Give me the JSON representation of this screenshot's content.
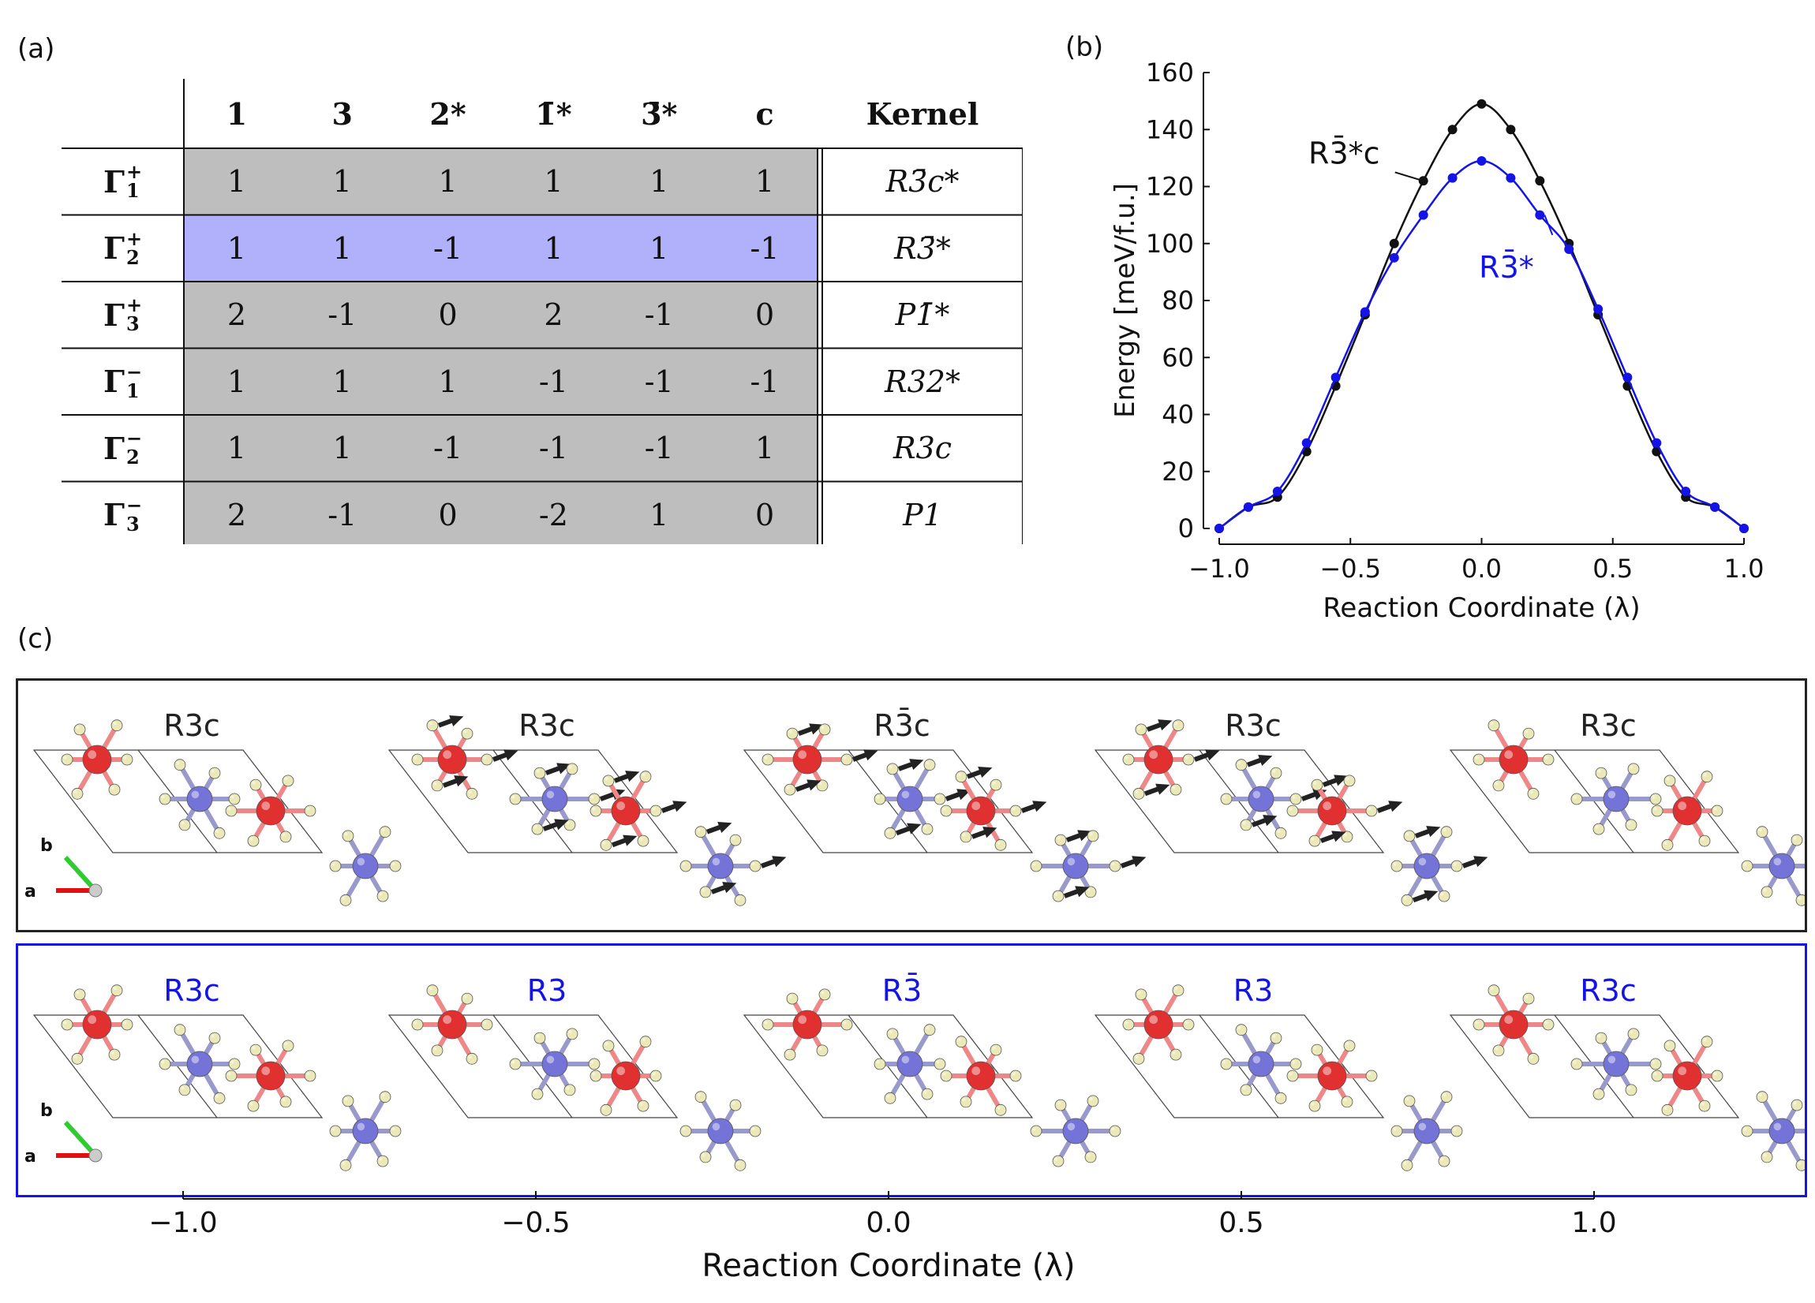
{
  "panel_labels": {
    "a": "(a)",
    "b": "(b)",
    "c": "(c)"
  },
  "table": {
    "headers": [
      "1",
      "3",
      "2*",
      "1̄*",
      "3̄*",
      "c",
      "Kernel"
    ],
    "rows": [
      {
        "irrep": "Γ",
        "sup": "+",
        "sub": "1",
        "values": [
          "1",
          "1",
          "1",
          "1",
          "1",
          "1"
        ],
        "kernel": "R3̄c*"
      },
      {
        "irrep": "Γ",
        "sup": "+",
        "sub": "2",
        "values": [
          "1",
          "1",
          "-1",
          "1",
          "1",
          "-1"
        ],
        "kernel": "R3̄*"
      },
      {
        "irrep": "Γ",
        "sup": "+",
        "sub": "3",
        "values": [
          "2",
          "-1",
          "0",
          "2",
          "-1",
          "0"
        ],
        "kernel": "P1̄*"
      },
      {
        "irrep": "Γ",
        "sup": "−",
        "sub": "1",
        "values": [
          "1",
          "1",
          "1",
          "-1",
          "-1",
          "-1"
        ],
        "kernel": "R32*"
      },
      {
        "irrep": "Γ",
        "sup": "−",
        "sub": "2",
        "values": [
          "1",
          "1",
          "-1",
          "-1",
          "-1",
          "1"
        ],
        "kernel": "R3c"
      },
      {
        "irrep": "Γ",
        "sup": "−",
        "sub": "3",
        "values": [
          "2",
          "-1",
          "0",
          "-2",
          "1",
          "0"
        ],
        "kernel": "P1"
      }
    ],
    "highlight_row": 1,
    "colors": {
      "gray": "#bebebe",
      "highlight": "#b0b0fb"
    }
  },
  "chart_data": {
    "type": "line",
    "xlabel": "Reaction Coordinate (λ)",
    "ylabel": "Energy [meV/f.u.]",
    "xlim": [
      -1.0,
      1.0
    ],
    "ylim": [
      0,
      160
    ],
    "xticks": [
      -1.0,
      -0.5,
      0.0,
      0.5,
      1.0
    ],
    "xtick_labels": [
      "−1.0",
      "−0.5",
      "0.0",
      "0.5",
      "1.0"
    ],
    "yticks": [
      0,
      20,
      40,
      60,
      80,
      100,
      120,
      140,
      160
    ],
    "series": [
      {
        "name": "R3̄*c",
        "color": "#111111",
        "x": [
          -1.0,
          -0.889,
          -0.778,
          -0.667,
          -0.556,
          -0.444,
          -0.333,
          -0.222,
          -0.111,
          0.0,
          0.111,
          0.222,
          0.333,
          0.444,
          0.556,
          0.667,
          0.778,
          0.889,
          1.0
        ],
        "y": [
          0,
          7.5,
          11,
          27,
          50,
          75,
          100,
          122,
          140,
          149,
          140,
          122,
          100,
          75,
          50,
          27,
          11,
          7.5,
          0
        ]
      },
      {
        "name": "R3̄*",
        "color": "#1414e6",
        "x": [
          -1.0,
          -0.889,
          -0.778,
          -0.667,
          -0.556,
          -0.444,
          -0.333,
          -0.222,
          -0.111,
          0.0,
          0.111,
          0.222,
          0.333,
          0.444,
          0.556,
          0.667,
          0.778,
          0.889,
          1.0
        ],
        "y": [
          0,
          7.5,
          13,
          30,
          53,
          76,
          95,
          110,
          123,
          129,
          123,
          110,
          98,
          77,
          53,
          30,
          13,
          7.5,
          0
        ]
      }
    ]
  },
  "panel_c": {
    "top_titles": [
      "R3c",
      "R3c",
      "R3̄c",
      "R3c",
      "R3c"
    ],
    "bottom_titles": [
      "R3c",
      "R3",
      "R3̄",
      "R3",
      "R3c"
    ],
    "axis_a": "a",
    "axis_b": "b",
    "xlabel": "Reaction Coordinate (λ)",
    "xtick_labels": [
      "−1.0",
      "−0.5",
      "0.0",
      "0.5",
      "1.0"
    ],
    "colors": {
      "top_border": "#222222",
      "bottom_border": "#1414e6",
      "red_atom": "#e03030",
      "blue_atom": "#7474d8",
      "light_atom": "#ebe9b8"
    }
  }
}
